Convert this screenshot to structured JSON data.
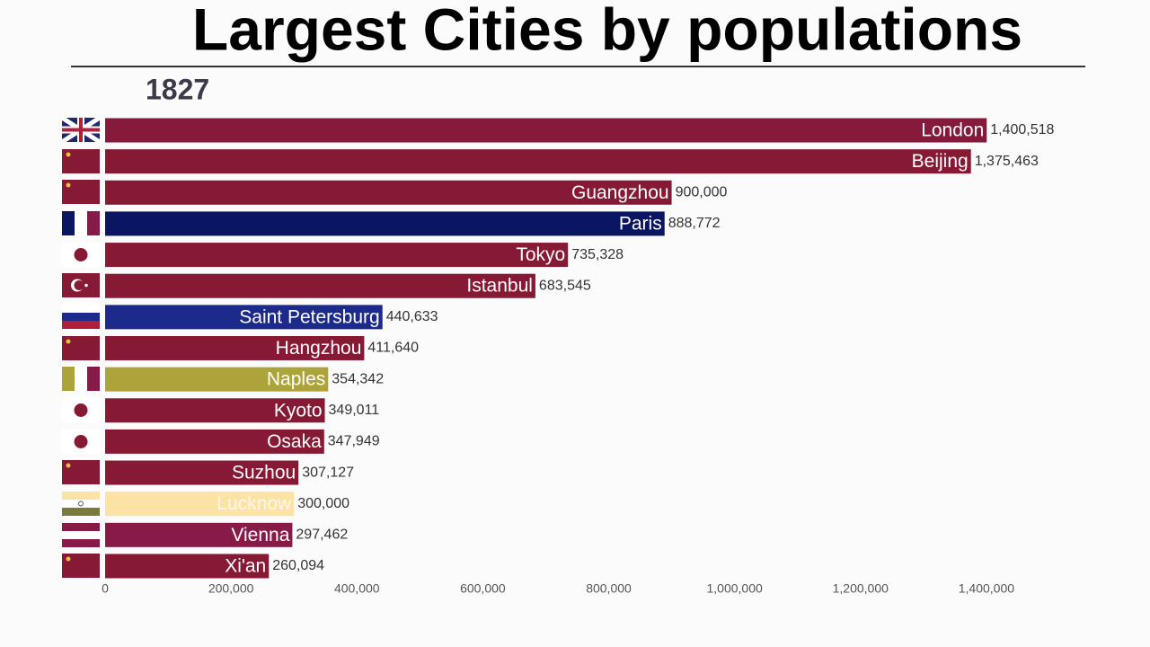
{
  "chart_data": {
    "type": "bar",
    "orientation": "horizontal",
    "title": "Largest Cities by populations",
    "subtitle": "1827",
    "categories": [
      "London",
      "Beijing",
      "Guangzhou",
      "Paris",
      "Tokyo",
      "Istanbul",
      "Saint Petersburg",
      "Hangzhou",
      "Naples",
      "Kyoto",
      "Osaka",
      "Suzhou",
      "Lucknow",
      "Vienna",
      "Xi'an"
    ],
    "values": [
      1400518,
      1375463,
      900000,
      888772,
      735328,
      683545,
      440633,
      411640,
      354342,
      349011,
      347949,
      307127,
      300000,
      297462,
      260094
    ],
    "value_labels": [
      "1,400,518",
      "1,375,463",
      "900,000",
      "888,772",
      "735,328",
      "683,545",
      "440,633",
      "411,640",
      "354,342",
      "349,011",
      "347,949",
      "307,127",
      "300,000",
      "297,462",
      "260,094"
    ],
    "colors": [
      "#861a3a",
      "#861a34",
      "#861a34",
      "#0b1663",
      "#861a34",
      "#861a34",
      "#1c2a8c",
      "#861a34",
      "#aca43a",
      "#861a34",
      "#861a34",
      "#861a34",
      "#fde2a6",
      "#881a48",
      "#861a34"
    ],
    "xlim": [
      0,
      1540000
    ],
    "xticks": [
      0,
      {
        "value": 200000,
        "label": "200,000"
      },
      {
        "value": 400000,
        "label": "400,000"
      },
      {
        "value": 600000,
        "label": "600,000"
      },
      {
        "value": 800000,
        "label": "800,000"
      },
      {
        "value": 1000000,
        "label": "1,000,000"
      },
      {
        "value": 1200000,
        "label": "1,200,000"
      },
      {
        "value": 1400000,
        "label": "1,400,000"
      }
    ]
  }
}
